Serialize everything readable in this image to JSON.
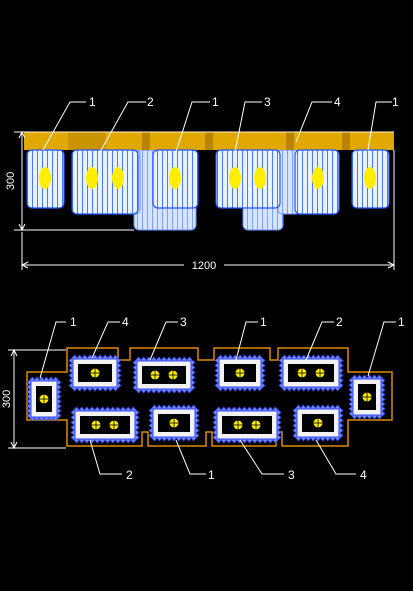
{
  "colors": {
    "background": "#000000",
    "line": "#ffffff",
    "mount_bar": "#e0a800",
    "mount_bar_dark": "#b88400",
    "glass": "#8fb4ff",
    "glass_fill": "#ddeeff",
    "glass_edge": "#2255ff",
    "bulb": "#ffee00",
    "plate_outline": "#e08a00",
    "frame": "#3344ee",
    "frame_fill": "#f2f2f2"
  },
  "front_view": {
    "labels": [
      "1",
      "2",
      "1",
      "3",
      "4",
      "1"
    ],
    "width_dimension": "1200",
    "height_dimension": "300",
    "bulb_icon": "bulb-icon"
  },
  "top_view": {
    "labels_top": [
      "1",
      "4",
      "3",
      "1",
      "2",
      "1"
    ],
    "labels_bottom": [
      "2",
      "1",
      "3",
      "4"
    ],
    "height_dimension": "300",
    "bulb_icon": "bulb-icon"
  }
}
